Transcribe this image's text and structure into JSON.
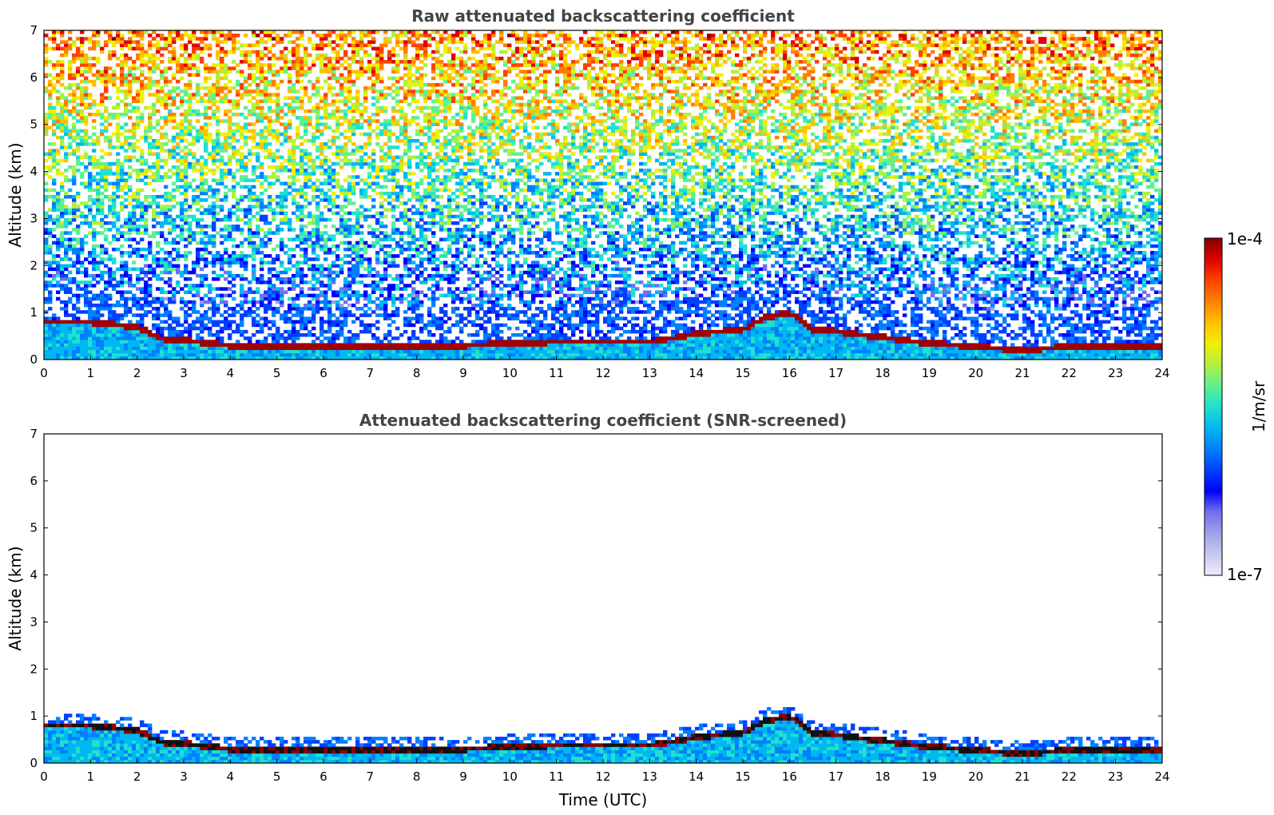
{
  "chart_data": [
    {
      "type": "heatmap",
      "title": "Raw attenuated backscattering coefficient",
      "xlabel": "",
      "ylabel": "Altitude (km)",
      "xlim": [
        0,
        24
      ],
      "ylim": [
        0,
        7
      ],
      "x_ticks": [
        "0",
        "1",
        "2",
        "3",
        "4",
        "5",
        "6",
        "7",
        "8",
        "9",
        "10",
        "11",
        "12",
        "13",
        "14",
        "15",
        "16",
        "17",
        "18",
        "19",
        "20",
        "21",
        "22",
        "23",
        "24"
      ],
      "y_ticks": [
        "0",
        "1",
        "2",
        "3",
        "4",
        "5",
        "6",
        "7"
      ],
      "cloud_base_km": [
        [
          0,
          0.8
        ],
        [
          1,
          0.8
        ],
        [
          2,
          0.7
        ],
        [
          2.5,
          0.45
        ],
        [
          3,
          0.42
        ],
        [
          4,
          0.3
        ],
        [
          5,
          0.3
        ],
        [
          6,
          0.3
        ],
        [
          7,
          0.28
        ],
        [
          8,
          0.3
        ],
        [
          9,
          0.3
        ],
        [
          10,
          0.35
        ],
        [
          11,
          0.38
        ],
        [
          12,
          0.38
        ],
        [
          13,
          0.38
        ],
        [
          14,
          0.55
        ],
        [
          14.5,
          0.6
        ],
        [
          15,
          0.65
        ],
        [
          15.5,
          0.9
        ],
        [
          16,
          1.0
        ],
        [
          16.5,
          0.65
        ],
        [
          17,
          0.6
        ],
        [
          19,
          0.35
        ],
        [
          20,
          0.28
        ],
        [
          21,
          0.2
        ],
        [
          22,
          0.28
        ],
        [
          23,
          0.3
        ],
        [
          24,
          0.3
        ]
      ],
      "noise_level": "high"
    },
    {
      "type": "heatmap",
      "title": "Attenuated backscattering coefficient (SNR-screened)",
      "xlabel": "Time (UTC)",
      "ylabel": "Altitude (km)",
      "xlim": [
        0,
        24
      ],
      "ylim": [
        0,
        7
      ],
      "x_ticks": [
        "0",
        "1",
        "2",
        "3",
        "4",
        "5",
        "6",
        "7",
        "8",
        "9",
        "10",
        "11",
        "12",
        "13",
        "14",
        "15",
        "16",
        "17",
        "18",
        "19",
        "20",
        "21",
        "22",
        "23",
        "24"
      ],
      "y_ticks": [
        "0",
        "1",
        "2",
        "3",
        "4",
        "5",
        "6",
        "7"
      ],
      "cloud_base_km": [
        [
          0,
          0.8
        ],
        [
          1,
          0.8
        ],
        [
          2,
          0.7
        ],
        [
          2.5,
          0.45
        ],
        [
          3,
          0.42
        ],
        [
          4,
          0.3
        ],
        [
          5,
          0.3
        ],
        [
          6,
          0.3
        ],
        [
          7,
          0.28
        ],
        [
          8,
          0.3
        ],
        [
          9,
          0.3
        ],
        [
          10,
          0.35
        ],
        [
          11,
          0.38
        ],
        [
          12,
          0.38
        ],
        [
          13,
          0.38
        ],
        [
          14,
          0.55
        ],
        [
          14.5,
          0.6
        ],
        [
          15,
          0.65
        ],
        [
          15.5,
          0.9
        ],
        [
          16,
          1.0
        ],
        [
          16.5,
          0.65
        ],
        [
          17,
          0.6
        ],
        [
          19,
          0.35
        ],
        [
          20,
          0.28
        ],
        [
          21,
          0.2
        ],
        [
          22,
          0.28
        ],
        [
          23,
          0.3
        ],
        [
          24,
          0.3
        ]
      ],
      "noise_level": "screened"
    }
  ],
  "colorbar": {
    "label": "1/m/sr",
    "max_label": "1e-4",
    "min_label": "1e-7",
    "colors": [
      "#ecebf8",
      "#c8c8f0",
      "#a0a0ec",
      "#7070f0",
      "#0000ff",
      "#0040ff",
      "#0080ff",
      "#00b8f0",
      "#20e0d0",
      "#60f090",
      "#b0f040",
      "#f0f000",
      "#ffc000",
      "#ff8000",
      "#ff4000",
      "#e00000",
      "#800000"
    ]
  }
}
